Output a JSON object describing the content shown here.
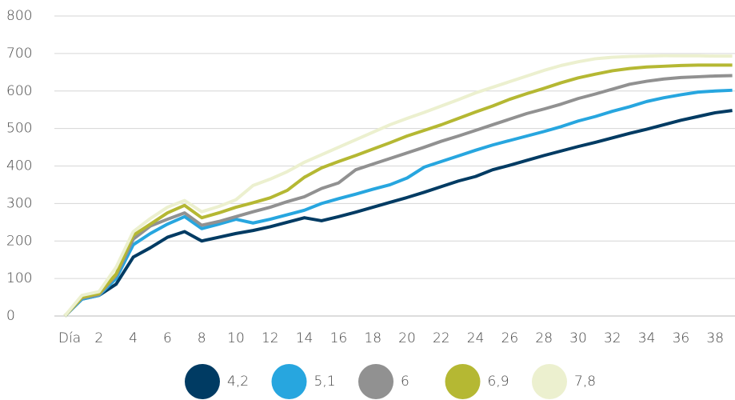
{
  "chart_data": {
    "type": "line",
    "categories": [
      "Día",
      null,
      "2",
      null,
      "4",
      null,
      "6",
      null,
      "8",
      null,
      "10",
      null,
      "12",
      null,
      "14",
      null,
      "16",
      null,
      "18",
      null,
      "20",
      null,
      "22",
      null,
      "24",
      null,
      "26",
      null,
      "28",
      null,
      "30",
      null,
      "32",
      null,
      "34",
      null,
      "36",
      null,
      "38",
      null
    ],
    "series": [
      {
        "name": "4,2",
        "color": "#003b63",
        "values": [
          0,
          45,
          55,
          85,
          157,
          182,
          210,
          225,
          200,
          210,
          220,
          228,
          238,
          250,
          262,
          254,
          265,
          277,
          290,
          303,
          316,
          330,
          345,
          360,
          372,
          390,
          402,
          415,
          428,
          440,
          452,
          463,
          475,
          487,
          498,
          510,
          522,
          532,
          542,
          548
        ]
      },
      {
        "name": "5,1",
        "color": "#27a6df",
        "values": [
          0,
          45,
          55,
          100,
          190,
          220,
          245,
          265,
          233,
          245,
          258,
          248,
          258,
          270,
          282,
          300,
          313,
          325,
          338,
          350,
          368,
          397,
          412,
          427,
          442,
          456,
          468,
          480,
          492,
          505,
          520,
          532,
          546,
          558,
          572,
          582,
          590,
          597,
          600,
          602
        ]
      },
      {
        "name": "6",
        "color": "#919191",
        "values": [
          0,
          48,
          57,
          108,
          205,
          240,
          258,
          275,
          242,
          252,
          265,
          278,
          290,
          305,
          318,
          340,
          355,
          390,
          405,
          420,
          435,
          450,
          466,
          480,
          495,
          510,
          525,
          540,
          552,
          565,
          580,
          592,
          605,
          618,
          626,
          632,
          636,
          638,
          640,
          641
        ]
      },
      {
        "name": "6,9",
        "color": "#b5b833",
        "values": [
          0,
          50,
          60,
          112,
          215,
          245,
          275,
          295,
          262,
          275,
          290,
          302,
          315,
          335,
          370,
          395,
          412,
          428,
          445,
          462,
          480,
          495,
          510,
          527,
          544,
          560,
          578,
          593,
          607,
          622,
          635,
          645,
          654,
          660,
          664,
          666,
          668,
          669,
          669,
          669
        ]
      },
      {
        "name": "7,8",
        "color": "#ecf0cf",
        "values": [
          0,
          55,
          65,
          130,
          225,
          260,
          290,
          308,
          278,
          292,
          310,
          348,
          365,
          385,
          410,
          430,
          450,
          470,
          490,
          510,
          527,
          543,
          560,
          577,
          595,
          610,
          625,
          640,
          655,
          668,
          678,
          686,
          690,
          692,
          693,
          694,
          694,
          694,
          693,
          693
        ]
      }
    ],
    "ylim": [
      0,
      800
    ],
    "yticks": [
      0,
      100,
      200,
      300,
      400,
      500,
      600,
      700,
      800
    ],
    "grid": true,
    "legend": "bottom"
  }
}
